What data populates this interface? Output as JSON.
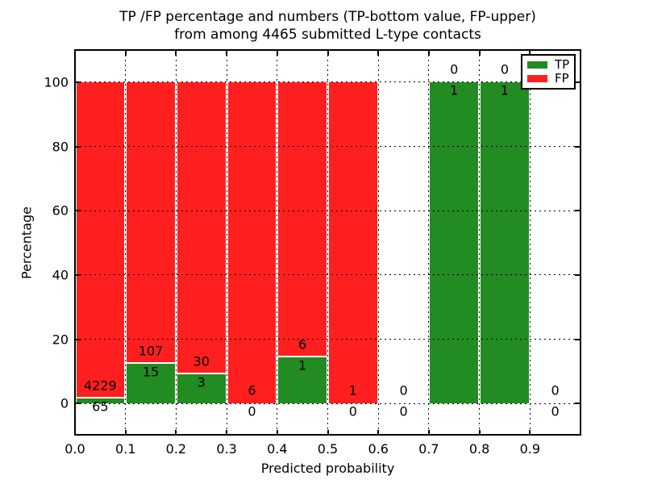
{
  "title": {
    "line1": "TP /FP percentage and numbers (TP-bottom value, FP-upper)",
    "line2": "from among 4465 submitted L-type contacts"
  },
  "axes": {
    "xlabel": "Predicted probability",
    "ylabel": "Percentage"
  },
  "legend": {
    "items": [
      {
        "label": "TP",
        "color": "#228b22"
      },
      {
        "label": "FP",
        "color": "#ff1f1f"
      }
    ]
  },
  "colors": {
    "tp_green": "#228b22",
    "fp_red": "#ff1f1f",
    "grid": "#000000",
    "axis": "#000000",
    "background": "#ffffff",
    "text": "#000000"
  },
  "chart_data": {
    "type": "bar",
    "stacked": true,
    "title": "TP /FP percentage and numbers (TP-bottom value, FP-upper) from among 4465 submitted L-type contacts",
    "xlabel": "Predicted probability",
    "ylabel": "Percentage",
    "xlim": [
      0.0,
      1.0
    ],
    "ylim": [
      -10,
      110
    ],
    "grid": true,
    "grid_style": "dotted",
    "legend_position": "upper right",
    "total_submitted_contacts": 4465,
    "bin_width": 0.1,
    "x_ticks": [
      0.0,
      0.1,
      0.2,
      0.3,
      0.4,
      0.5,
      0.6,
      0.7,
      0.8,
      0.9
    ],
    "x_tick_labels": [
      "0.0",
      "0.1",
      "0.2",
      "0.3",
      "0.4",
      "0.5",
      "0.6",
      "0.7",
      "0.8",
      "0.9"
    ],
    "y_ticks": [
      0,
      20,
      40,
      60,
      80,
      100
    ],
    "series": [
      {
        "name": "TP",
        "color": "#228b22",
        "position": "bottom"
      },
      {
        "name": "FP",
        "color": "#ff1f1f",
        "position": "upper"
      }
    ],
    "bins": [
      {
        "range": [
          0.0,
          0.1
        ],
        "tp_count": 65,
        "fp_count": 4229,
        "tp_pct": 1.51,
        "fp_pct": 98.49
      },
      {
        "range": [
          0.1,
          0.2
        ],
        "tp_count": 15,
        "fp_count": 107,
        "tp_pct": 12.3,
        "fp_pct": 87.7
      },
      {
        "range": [
          0.2,
          0.3
        ],
        "tp_count": 3,
        "fp_count": 30,
        "tp_pct": 9.09,
        "fp_pct": 90.91
      },
      {
        "range": [
          0.3,
          0.4
        ],
        "tp_count": 0,
        "fp_count": 6,
        "tp_pct": 0,
        "fp_pct": 100
      },
      {
        "range": [
          0.4,
          0.5
        ],
        "tp_count": 1,
        "fp_count": 6,
        "tp_pct": 14.29,
        "fp_pct": 85.71
      },
      {
        "range": [
          0.5,
          0.6
        ],
        "tp_count": 0,
        "fp_count": 1,
        "tp_pct": 0,
        "fp_pct": 100
      },
      {
        "range": [
          0.6,
          0.7
        ],
        "tp_count": 0,
        "fp_count": 0,
        "tp_pct": null,
        "fp_pct": null
      },
      {
        "range": [
          0.7,
          0.8
        ],
        "tp_count": 1,
        "fp_count": 0,
        "tp_pct": 100,
        "fp_pct": 0
      },
      {
        "range": [
          0.8,
          0.9
        ],
        "tp_count": 1,
        "fp_count": 0,
        "tp_pct": 100,
        "fp_pct": 0
      },
      {
        "range": [
          0.9,
          1.0
        ],
        "tp_count": 0,
        "fp_count": 0,
        "tp_pct": null,
        "fp_pct": null
      }
    ]
  }
}
